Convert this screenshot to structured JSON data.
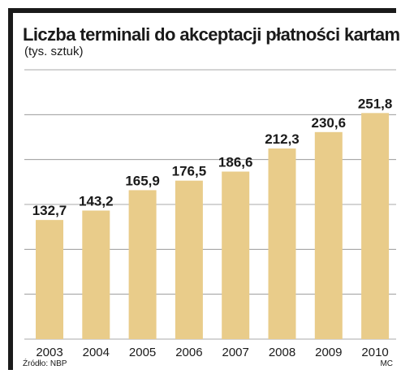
{
  "header": {
    "title": "Liczba terminali do akceptacji płatności kartami",
    "subtitle": "(tys. sztuk)"
  },
  "footer": {
    "source": "Źródło: NBP",
    "credit": "MC"
  },
  "colors": {
    "bar": "#e9cc8a",
    "grid": "#8c8c8c",
    "frame": "#1a1a1a",
    "text": "#1a1a1a"
  },
  "chart_data": {
    "type": "bar",
    "title": "Liczba terminali do akceptacji płatności kartami",
    "subtitle": "(tys. sztuk)",
    "categories": [
      "2003",
      "2004",
      "2005",
      "2006",
      "2007",
      "2008",
      "2009",
      "2010"
    ],
    "values": [
      132.7,
      143.2,
      165.9,
      176.5,
      186.6,
      212.3,
      230.6,
      251.8
    ],
    "value_labels": [
      "132,7",
      "143,2",
      "165,9",
      "176,5",
      "186,6",
      "212,3",
      "230,6",
      "251,8"
    ],
    "xlabel": "",
    "ylabel": "",
    "ylim": [
      0,
      300
    ],
    "grid": true,
    "legend": "none"
  }
}
